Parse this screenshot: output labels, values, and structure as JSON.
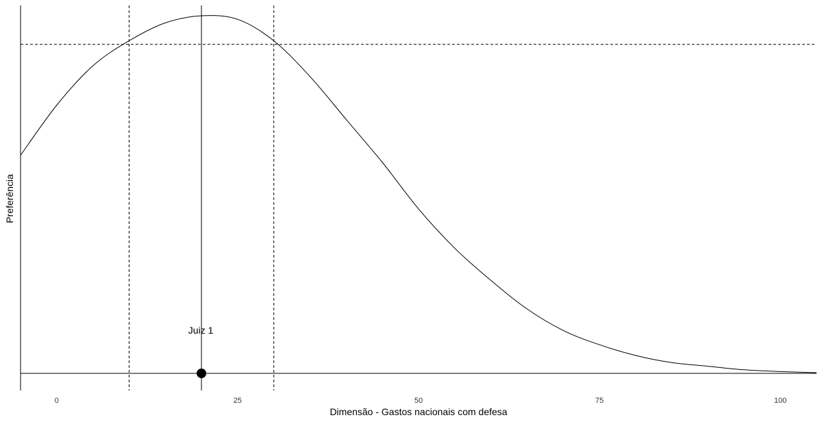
{
  "chart_data": {
    "type": "line",
    "title": "",
    "xlabel": "Dimensão - Gastos nacionais com defesa",
    "ylabel": "Preferência",
    "xlim": [
      -5,
      105
    ],
    "ylim": [
      0,
      1.0
    ],
    "x_ticks": [
      0,
      25,
      50,
      75,
      100
    ],
    "x_tick_labels": [
      "0",
      "25",
      "50",
      "75",
      "100"
    ],
    "grid": false,
    "legend": "none",
    "series": [
      {
        "name": "Preferência",
        "x": [
          -5,
          0,
          5,
          10,
          15,
          20,
          25,
          30,
          35,
          40,
          45,
          50,
          55,
          60,
          65,
          70,
          75,
          80,
          85,
          90,
          95,
          100,
          105
        ],
        "y": [
          0.61,
          0.75,
          0.86,
          0.93,
          0.98,
          1.0,
          0.99,
          0.93,
          0.83,
          0.71,
          0.59,
          0.46,
          0.35,
          0.26,
          0.18,
          0.12,
          0.08,
          0.05,
          0.03,
          0.02,
          0.01,
          0.005,
          0.002
        ]
      }
    ],
    "reference_lines": {
      "vertical_solid": 20,
      "vertical_dashed": [
        10,
        30
      ],
      "horizontal_dashed": 0.92,
      "baseline": 0
    },
    "point": {
      "x": 20,
      "y": 0,
      "label": "Juiz 1"
    }
  }
}
